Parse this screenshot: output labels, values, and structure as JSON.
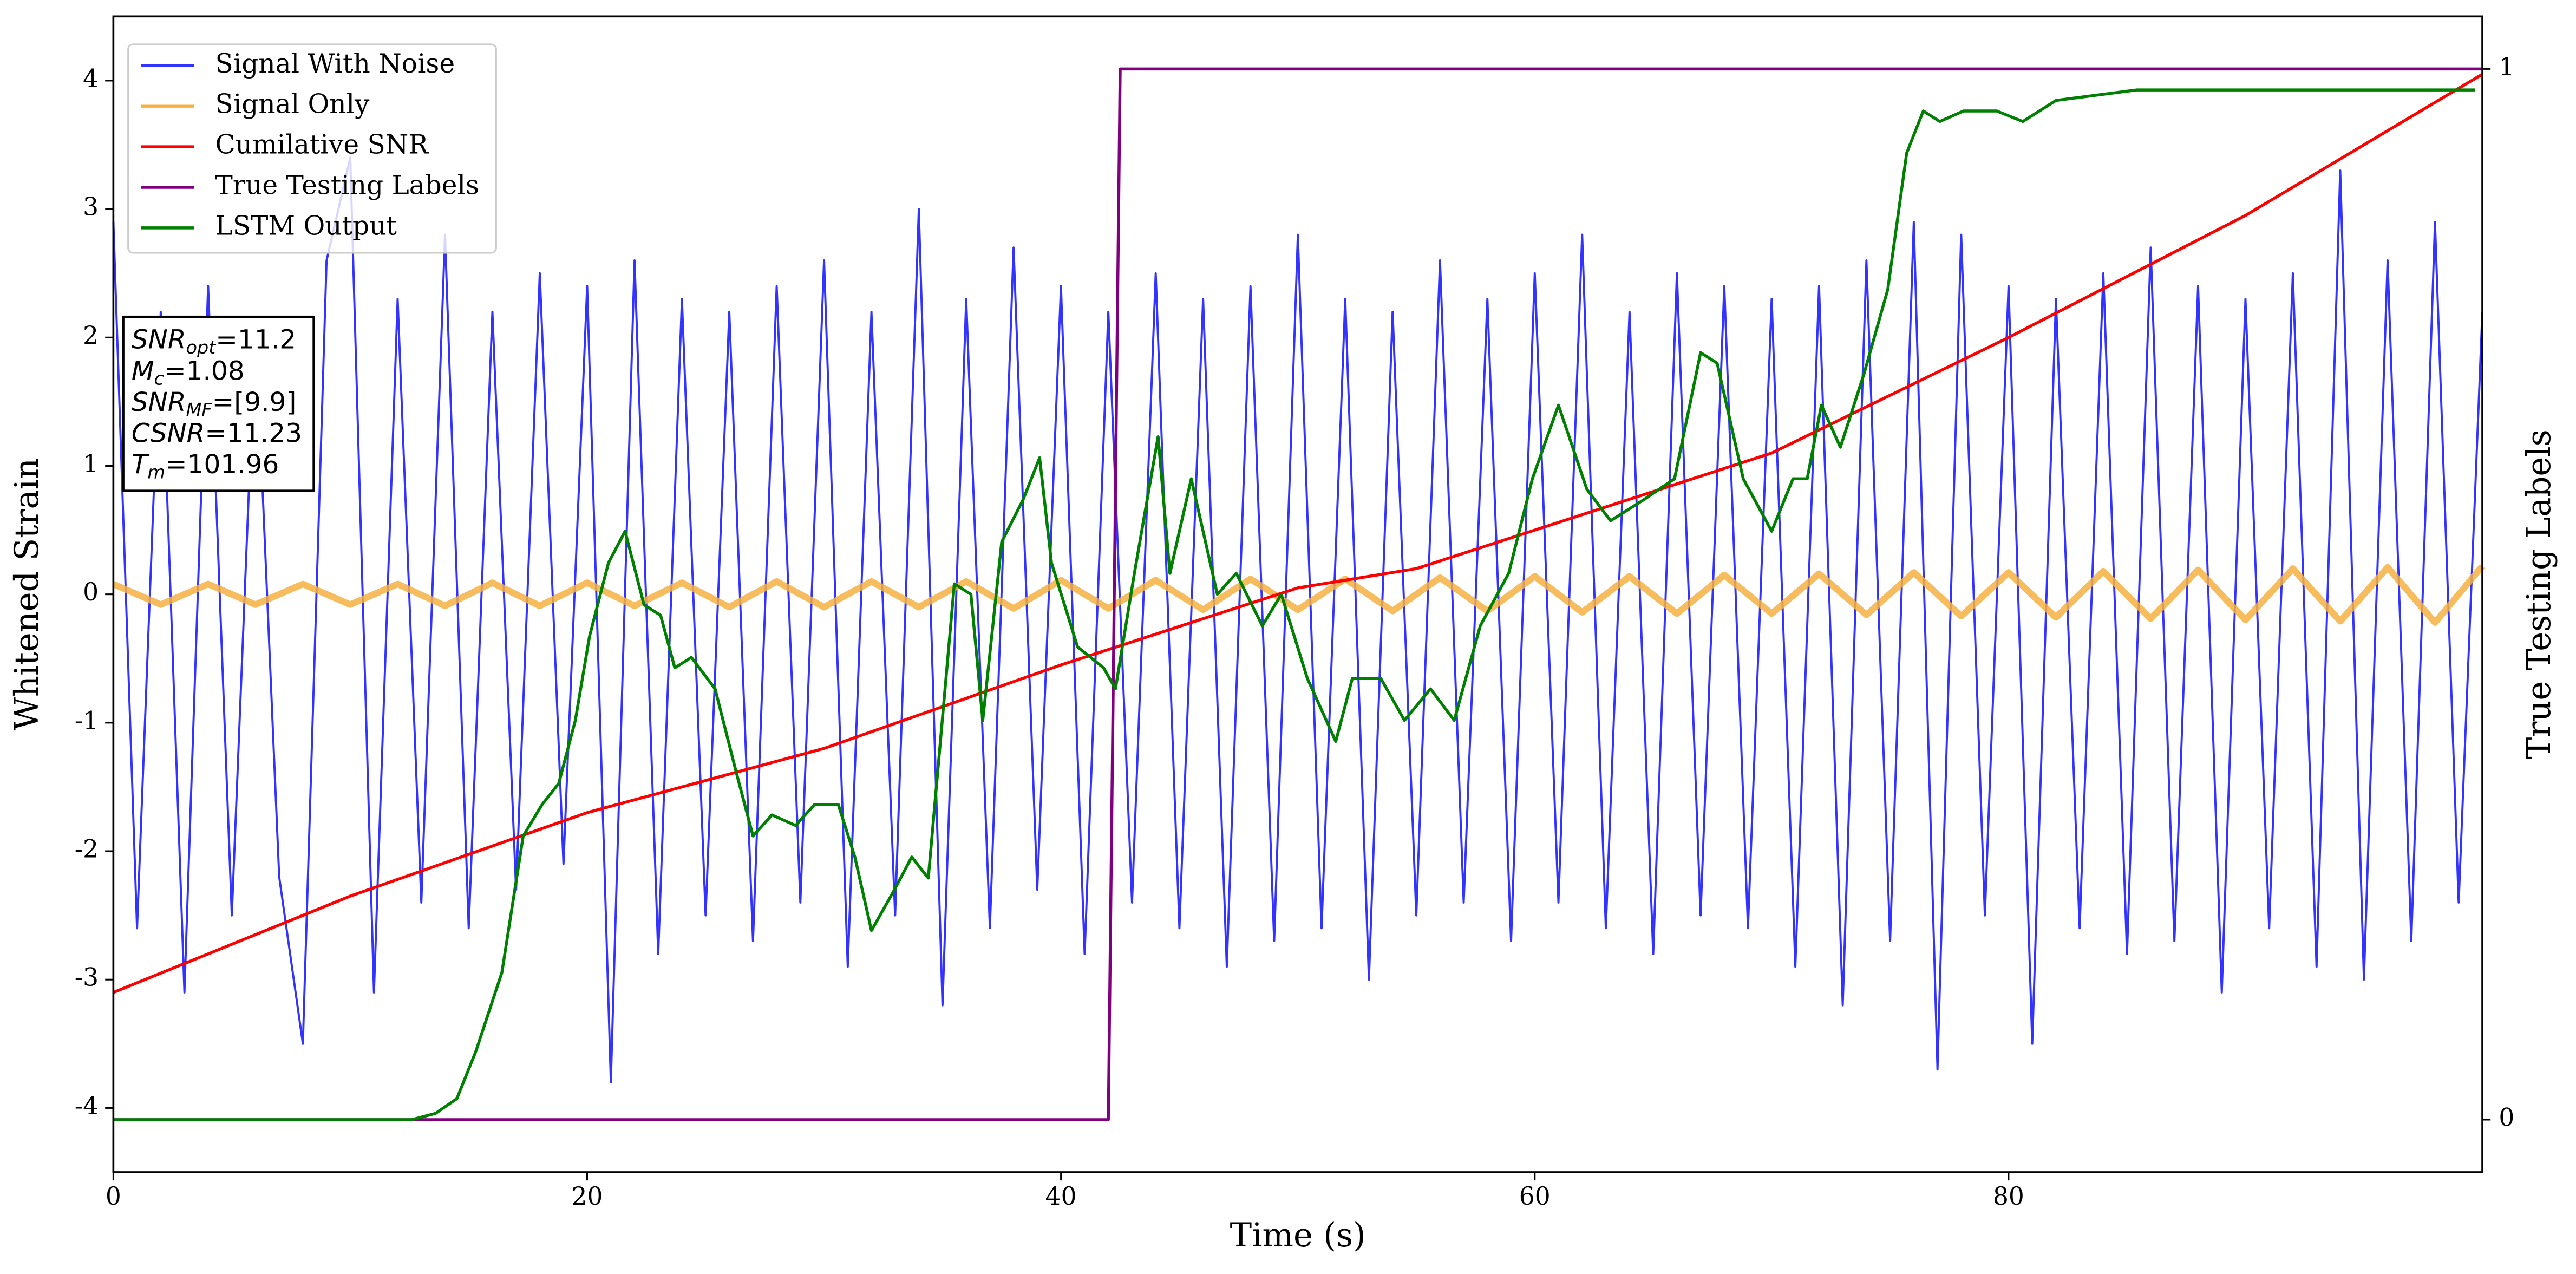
{
  "chart_data": {
    "type": "line",
    "xlabel": "Time (s)",
    "ylabel": "Whitened Strain",
    "y2label": "True Testing Labels",
    "xlim": [
      0,
      100
    ],
    "ylim": [
      -4.5,
      4.5
    ],
    "y2lim": [
      -0.05,
      1.05
    ],
    "xticks": [
      0,
      20,
      40,
      60,
      80
    ],
    "yticks": [
      -4,
      -3,
      -2,
      -1,
      0,
      1,
      2,
      3,
      4
    ],
    "y2ticks": [
      0,
      1
    ],
    "legend": "upper left",
    "series": [
      {
        "name": "Signal With Noise",
        "color": "#3333ff",
        "axis": "y",
        "x": [
          0,
          1,
          2,
          3,
          4,
          5,
          6,
          7,
          8,
          9,
          10,
          11,
          12,
          13,
          14,
          15,
          16,
          17,
          18,
          19,
          20,
          21,
          22,
          23,
          24,
          25,
          26,
          27,
          28,
          29,
          30,
          31,
          32,
          33,
          34,
          35,
          36,
          37,
          38,
          39,
          40,
          41,
          42,
          43,
          44,
          45,
          46,
          47,
          48,
          49,
          50,
          51,
          52,
          53,
          54,
          55,
          56,
          57,
          58,
          59,
          60,
          61,
          62,
          63,
          64,
          65,
          66,
          67,
          68,
          69,
          70,
          71,
          72,
          73,
          74,
          75,
          76,
          77,
          78,
          79,
          80,
          81,
          82,
          83,
          84,
          85,
          86,
          87,
          88,
          89,
          90,
          91,
          92,
          93,
          94,
          95,
          96,
          97,
          98,
          99,
          100
        ],
        "values": [
          2.9,
          -2.6,
          2.2,
          -3.1,
          2.4,
          -2.5,
          2.1,
          -2.2,
          -3.5,
          2.6,
          3.4,
          -3.1,
          2.3,
          -2.4,
          2.8,
          -2.6,
          2.2,
          -2.3,
          2.5,
          -2.1,
          2.4,
          -3.8,
          2.6,
          -2.8,
          2.3,
          -2.5,
          2.2,
          -2.7,
          2.4,
          -2.4,
          2.6,
          -2.9,
          2.2,
          -2.5,
          3.0,
          -3.2,
          2.3,
          -2.6,
          2.7,
          -2.3,
          2.4,
          -2.8,
          2.2,
          -2.4,
          2.5,
          -2.6,
          2.3,
          -2.9,
          2.4,
          -2.7,
          2.8,
          -2.6,
          2.3,
          -3.0,
          2.2,
          -2.5,
          2.6,
          -2.4,
          2.3,
          -2.7,
          2.5,
          -2.4,
          2.8,
          -2.6,
          2.2,
          -2.8,
          2.5,
          -2.5,
          2.4,
          -2.6,
          2.3,
          -2.9,
          2.4,
          -3.2,
          2.6,
          -2.7,
          2.9,
          -3.7,
          2.8,
          -2.5,
          2.4,
          -3.5,
          2.3,
          -2.6,
          2.5,
          -2.8,
          2.7,
          -2.7,
          2.4,
          -3.1,
          2.3,
          -2.6,
          2.5,
          -2.9,
          3.3,
          -3.0,
          2.6,
          -2.7,
          2.9,
          -2.4,
          2.2
        ]
      },
      {
        "name": "Signal Only",
        "color": "#f5b041",
        "axis": "y",
        "x": [
          0,
          2,
          4,
          6,
          8,
          10,
          12,
          14,
          16,
          18,
          20,
          22,
          24,
          26,
          28,
          30,
          32,
          34,
          36,
          38,
          40,
          42,
          44,
          46,
          48,
          50,
          52,
          54,
          56,
          58,
          60,
          62,
          64,
          66,
          68,
          70,
          72,
          74,
          76,
          78,
          80,
          82,
          84,
          86,
          88,
          90,
          92,
          94,
          96,
          98,
          100
        ],
        "values": [
          0.08,
          -0.08,
          0.08,
          -0.08,
          0.08,
          -0.08,
          0.08,
          -0.09,
          0.09,
          -0.09,
          0.09,
          -0.09,
          0.09,
          -0.1,
          0.1,
          -0.1,
          0.1,
          -0.1,
          0.1,
          -0.11,
          0.11,
          -0.11,
          0.11,
          -0.12,
          0.12,
          -0.12,
          0.12,
          -0.13,
          0.13,
          -0.13,
          0.14,
          -0.14,
          0.14,
          -0.15,
          0.15,
          -0.15,
          0.16,
          -0.16,
          0.17,
          -0.17,
          0.17,
          -0.18,
          0.18,
          -0.19,
          0.19,
          -0.2,
          0.2,
          -0.21,
          0.21,
          -0.22,
          0.22
        ]
      },
      {
        "name": "Cumilative SNR",
        "color": "#ff0000",
        "axis": "y",
        "x": [
          0,
          10,
          20,
          30,
          40,
          50,
          55,
          60,
          70,
          80,
          90,
          100
        ],
        "values": [
          -3.1,
          -2.35,
          -1.7,
          -1.2,
          -0.55,
          0.05,
          0.2,
          0.5,
          1.1,
          2.0,
          2.95,
          4.05
        ]
      },
      {
        "name": "True Testing Labels",
        "color": "#800080",
        "axis": "y2",
        "x": [
          0,
          42,
          42.5,
          100
        ],
        "values": [
          0,
          0,
          1,
          1
        ]
      },
      {
        "name": "LSTM Output",
        "color": "#008000",
        "axis": "y2",
        "x": [
          0,
          12.6,
          13.6,
          14.5,
          15.3,
          16.4,
          17.3,
          18.1,
          18.8,
          19.5,
          20.1,
          20.9,
          21.6,
          22.4,
          23.1,
          23.7,
          24.4,
          25.4,
          26.3,
          27.0,
          27.8,
          28.8,
          29.6,
          30.6,
          31.3,
          32.0,
          33.0,
          33.7,
          34.4,
          35.5,
          36.2,
          36.7,
          37.5,
          38.4,
          39.1,
          39.6,
          40.7,
          41.8,
          42.3,
          43.1,
          44.1,
          44.6,
          45.5,
          46.6,
          47.4,
          48.5,
          49.3,
          50.4,
          51.6,
          52.3,
          53.5,
          54.5,
          55.6,
          56.6,
          57.7,
          58.9,
          59.9,
          61.0,
          62.2,
          63.2,
          64.6,
          65.9,
          67.0,
          67.7,
          68.8,
          70.0,
          70.9,
          71.5,
          72.1,
          72.9,
          73.9,
          74.9,
          75.7,
          76.4,
          77.1,
          78.1,
          79.5,
          80.6,
          82.0,
          85.4,
          88.9,
          92.4,
          95.8,
          99.7
        ],
        "values": [
          0,
          0,
          0.006,
          0.02,
          0.065,
          0.14,
          0.27,
          0.3,
          0.32,
          0.38,
          0.46,
          0.53,
          0.56,
          0.49,
          0.48,
          0.43,
          0.44,
          0.41,
          0.33,
          0.27,
          0.29,
          0.28,
          0.3,
          0.3,
          0.25,
          0.18,
          0.22,
          0.25,
          0.23,
          0.51,
          0.5,
          0.38,
          0.55,
          0.59,
          0.63,
          0.53,
          0.45,
          0.43,
          0.41,
          0.52,
          0.65,
          0.52,
          0.61,
          0.5,
          0.52,
          0.47,
          0.5,
          0.42,
          0.36,
          0.42,
          0.42,
          0.38,
          0.41,
          0.38,
          0.47,
          0.52,
          0.61,
          0.68,
          0.6,
          0.57,
          0.59,
          0.61,
          0.73,
          0.72,
          0.61,
          0.56,
          0.61,
          0.61,
          0.68,
          0.64,
          0.71,
          0.79,
          0.92,
          0.96,
          0.95,
          0.96,
          0.96,
          0.95,
          0.97,
          0.98,
          0.98,
          0.98,
          0.98,
          0.98
        ]
      }
    ],
    "annotation": [
      {
        "symbol": "SNR",
        "subscript": "opt",
        "text": "=11.2"
      },
      {
        "symbol": "M",
        "subscript": "c",
        "text": "=1.08"
      },
      {
        "symbol": "SNR",
        "subscript": "MF",
        "text": "=[9.9]"
      },
      {
        "symbol": "CSNR",
        "subscript": "",
        "text": "=11.23"
      },
      {
        "symbol": "T",
        "subscript": "m",
        "text": "=101.96"
      }
    ]
  }
}
